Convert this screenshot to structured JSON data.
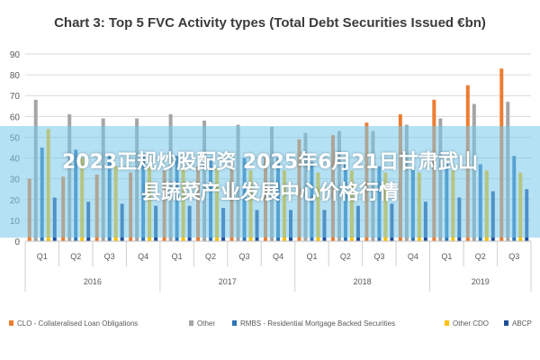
{
  "chart_data": {
    "type": "bar",
    "title": "Chart 3: Top 5 FVC Activity types (Total Debt Securities Issued €bn)",
    "ylim": [
      0,
      90
    ],
    "yticks": [
      0,
      10,
      20,
      30,
      40,
      50,
      60,
      70,
      80,
      90
    ],
    "grid": true,
    "legend_position": "bottom",
    "categories": [
      "Q1",
      "Q2",
      "Q3",
      "Q4",
      "Q1",
      "Q2",
      "Q3",
      "Q4",
      "Q1",
      "Q2",
      "Q3",
      "Q4",
      "Q1",
      "Q2",
      "Q3"
    ],
    "year_groups": [
      {
        "label": "2016",
        "count": 4
      },
      {
        "label": "2017",
        "count": 4
      },
      {
        "label": "2018",
        "count": 4
      },
      {
        "label": "2019",
        "count": 3
      }
    ],
    "series": [
      {
        "name": "CLO - Collateralised Loan Obligations",
        "color": "#ED7D31",
        "values": [
          30,
          31,
          32,
          33,
          34,
          36,
          38,
          40,
          49,
          51,
          57,
          61,
          68,
          75,
          83
        ]
      },
      {
        "name": "Other",
        "color": "#A5A5A5",
        "values": [
          68,
          61,
          59,
          59,
          61,
          58,
          56,
          55,
          52,
          53,
          53,
          56,
          59,
          66,
          67
        ]
      },
      {
        "name": "RMBS - Residential Mortgage Backed Securities",
        "color": "#2E75B6",
        "values": [
          45,
          44,
          42,
          42,
          41,
          40,
          40,
          40,
          38,
          38,
          36,
          36,
          37,
          37,
          41
        ]
      },
      {
        "name": "Other CDO",
        "color": "#FFC000",
        "values": [
          54,
          40,
          36,
          36,
          35,
          35,
          34,
          34,
          33,
          34,
          33,
          33,
          34,
          34,
          33
        ]
      },
      {
        "name": "ABCP",
        "color": "#1F4E9A",
        "values": [
          21,
          19,
          18,
          17,
          17,
          16,
          15,
          15,
          15,
          17,
          18,
          19,
          21,
          24,
          25
        ]
      }
    ]
  },
  "overlay": {
    "line1": "2023正规炒股配资 2025年6月21日甘肃武山",
    "line2": "县蔬菜产业发展中心价格行情"
  }
}
